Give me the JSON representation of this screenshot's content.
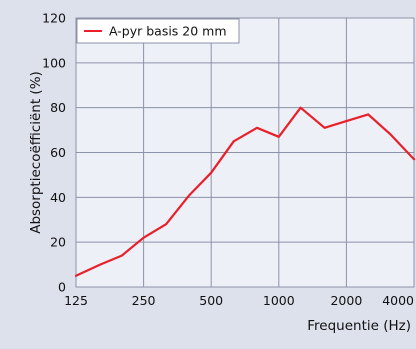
{
  "chart_data": {
    "type": "line",
    "title": "",
    "xlabel": "Frequentie (Hz)",
    "ylabel": "Absorptiecoëfficiënt (%)",
    "x_scale": "log",
    "xlim": [
      125,
      4000
    ],
    "ylim": [
      0,
      120
    ],
    "x_ticks": [
      125,
      250,
      500,
      1000,
      2000,
      4000
    ],
    "x_tick_labels": [
      "125",
      "250",
      "500",
      "1000",
      "2000",
      "4000"
    ],
    "y_ticks": [
      0,
      20,
      40,
      60,
      80,
      100,
      120
    ],
    "y_tick_labels": [
      "0",
      "20",
      "40",
      "60",
      "80",
      "100",
      "120"
    ],
    "grid": true,
    "legend_position": "top-left",
    "colors": {
      "background": "#dde1ec",
      "plot_area": "#eef0f7",
      "grid": "#8c92a8",
      "series": "#e8202a"
    },
    "series": [
      {
        "name": "A-pyr basis 20 mm",
        "x": [
          125,
          160,
          200,
          250,
          315,
          400,
          500,
          630,
          800,
          1000,
          1250,
          1600,
          2000,
          2500,
          3150,
          4000
        ],
        "y": [
          5,
          10,
          14,
          22,
          28,
          41,
          51,
          65,
          71,
          67,
          80,
          71,
          74,
          77,
          68,
          57
        ]
      }
    ]
  }
}
